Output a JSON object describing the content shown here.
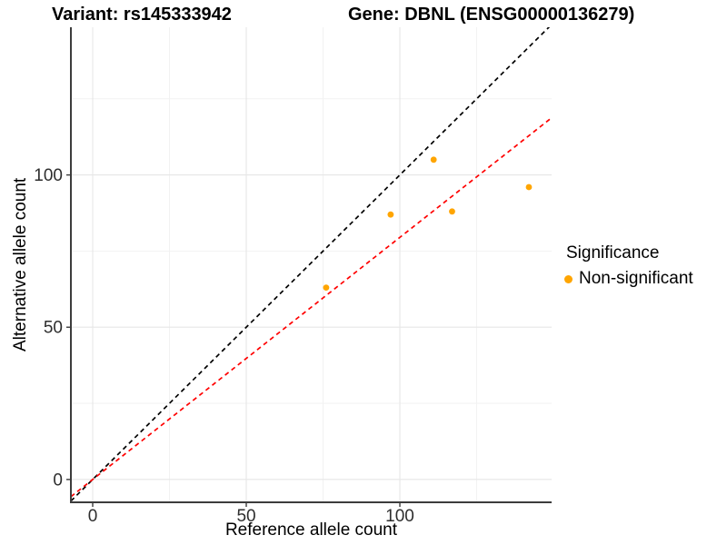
{
  "titles": {
    "variant": "Variant: rs145333942",
    "gene": "Gene: DBNL (ENSG00000136279)"
  },
  "legend": {
    "title": "Significance",
    "items": [
      {
        "label": "Non-significant",
        "color": "#FFA500"
      }
    ]
  },
  "chart_data": {
    "type": "scatter",
    "title": "Variant: rs145333942 / Gene: DBNL (ENSG00000136279)",
    "xlabel": "Reference allele count",
    "ylabel": "Alternative allele count",
    "xlim": [
      -7.1,
      149.4
    ],
    "ylim": [
      -7.5,
      148.5
    ],
    "x_major_ticks": [
      0,
      50,
      100
    ],
    "y_major_ticks": [
      0,
      50,
      100
    ],
    "x_minor_ticks": [
      25,
      75,
      125
    ],
    "y_minor_ticks": [
      25,
      75,
      125
    ],
    "grid": "on",
    "legend_position": "right",
    "series": [
      {
        "name": "Non-significant",
        "color": "#FFA500",
        "points": [
          [
            76,
            63
          ],
          [
            97,
            87
          ],
          [
            111,
            105
          ],
          [
            117,
            88
          ],
          [
            142,
            96
          ]
        ]
      }
    ],
    "reference_lines": [
      {
        "name": "identity",
        "slope": 1,
        "intercept": 0,
        "color": "#000000",
        "style": "dashed"
      },
      {
        "name": "fit",
        "slope": 0.795,
        "intercept": 0,
        "color": "#FF0000",
        "style": "dashed"
      }
    ],
    "colors": {
      "grid_major": "#E6E6E6",
      "grid_minor": "#F2F2F2",
      "axis_line": "#3C3C3C",
      "tick_text": "#2E2E2E"
    }
  }
}
